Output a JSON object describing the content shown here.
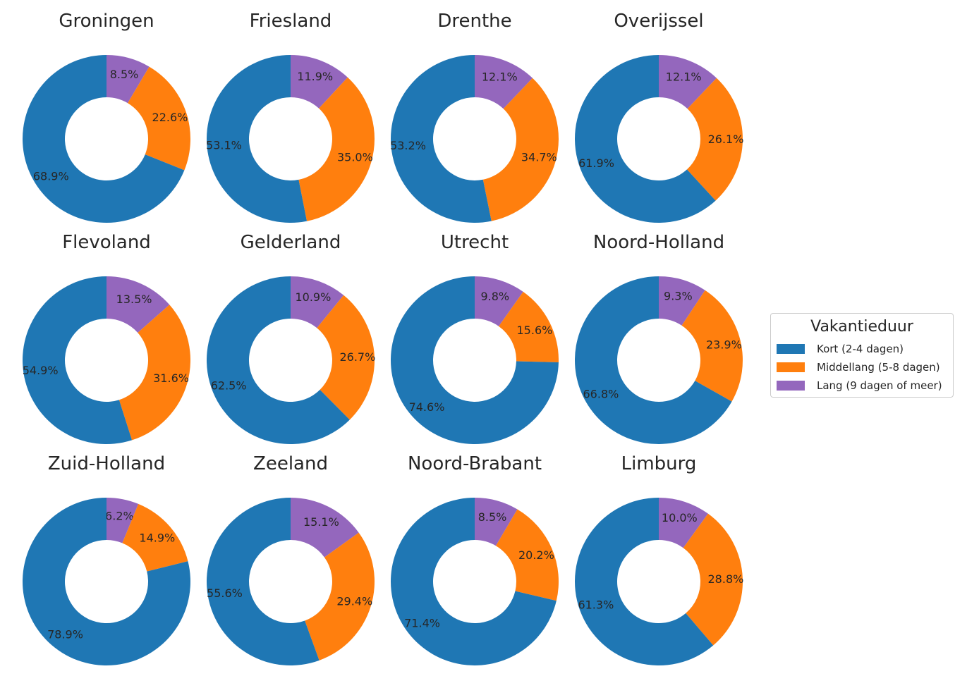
{
  "chart_data": {
    "type": "pie",
    "subtype": "donut",
    "categories": [
      "Kort (2-4 dagen)",
      "Middellang (5-8 dagen)",
      "Lang (9 dagen of meer)"
    ],
    "colors": [
      "#1f77b4",
      "#ff7f0e",
      "#9467bd"
    ],
    "legend": {
      "title": "Vakantieduur",
      "placement": "right"
    },
    "panels": [
      {
        "title": "Groningen",
        "values": [
          68.9,
          22.6,
          8.5
        ],
        "labels": [
          "68.9%",
          "22.6%",
          "8.5%"
        ]
      },
      {
        "title": "Friesland",
        "values": [
          53.1,
          35.0,
          11.9
        ],
        "labels": [
          "53.1%",
          "35.0%",
          "11.9%"
        ]
      },
      {
        "title": "Drenthe",
        "values": [
          53.2,
          34.7,
          12.1
        ],
        "labels": [
          "53.2%",
          "34.7%",
          "12.1%"
        ]
      },
      {
        "title": "Overijssel",
        "values": [
          61.9,
          26.1,
          12.1
        ],
        "labels": [
          "61.9%",
          "26.1%",
          "12.1%"
        ]
      },
      {
        "title": "Flevoland",
        "values": [
          54.9,
          31.6,
          13.5
        ],
        "labels": [
          "54.9%",
          "31.6%",
          "13.5%"
        ]
      },
      {
        "title": "Gelderland",
        "values": [
          62.5,
          26.7,
          10.9
        ],
        "labels": [
          "62.5%",
          "26.7%",
          "10.9%"
        ]
      },
      {
        "title": "Utrecht",
        "values": [
          74.6,
          15.6,
          9.8
        ],
        "labels": [
          "74.6%",
          "15.6%",
          "9.8%"
        ]
      },
      {
        "title": "Noord-Holland",
        "values": [
          66.8,
          23.9,
          9.3
        ],
        "labels": [
          "66.8%",
          "23.9%",
          "9.3%"
        ]
      },
      {
        "title": "Zuid-Holland",
        "values": [
          78.9,
          14.9,
          6.2
        ],
        "labels": [
          "78.9%",
          "14.9%",
          "6.2%"
        ]
      },
      {
        "title": "Zeeland",
        "values": [
          55.6,
          29.4,
          15.1
        ],
        "labels": [
          "55.6%",
          "29.4%",
          "15.1%"
        ]
      },
      {
        "title": "Noord-Brabant",
        "values": [
          71.4,
          20.2,
          8.5
        ],
        "labels": [
          "71.4%",
          "20.2%",
          "8.5%"
        ]
      },
      {
        "title": "Limburg",
        "values": [
          61.3,
          28.8,
          10.0
        ],
        "labels": [
          "61.3%",
          "28.8%",
          "10.0%"
        ]
      }
    ]
  }
}
